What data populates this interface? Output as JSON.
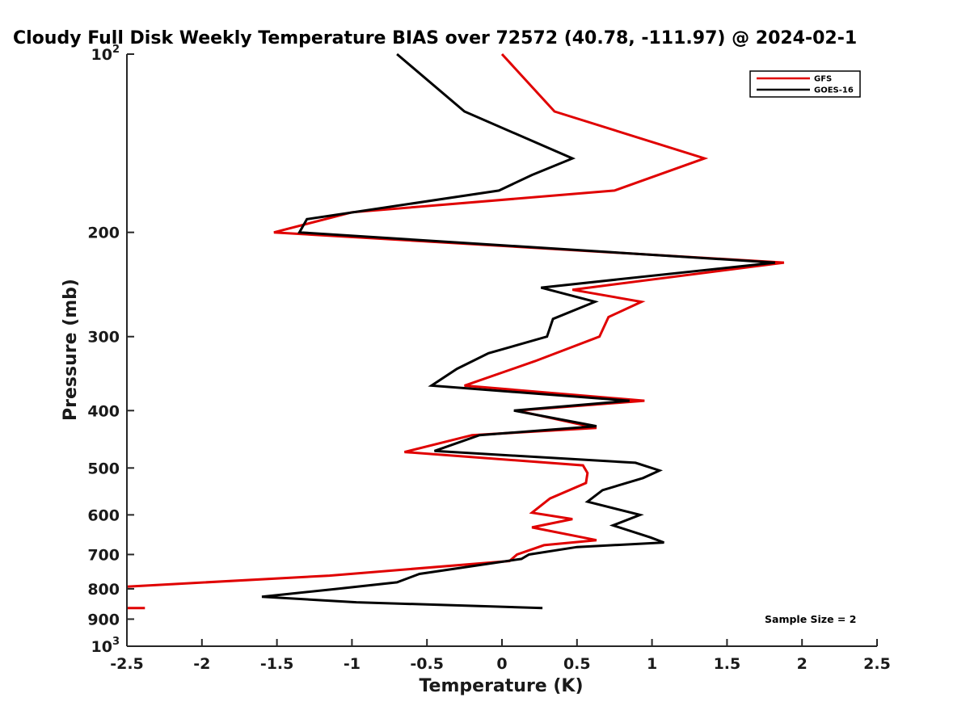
{
  "chart_data": {
    "type": "line",
    "title": "Cloudy Full Disk Weekly Temperature BIAS over 72572 (40.78, -111.97) @ 2024-02-1",
    "xlabel": "Temperature (K)",
    "ylabel": "Pressure (mb)",
    "xlim": [
      -2.5,
      2.5
    ],
    "ylim": [
      100,
      1000
    ],
    "y_scale": "log",
    "y_reversed": true,
    "grid": false,
    "legend_position": "top-right",
    "annotation": "Sample Size = 2",
    "x_ticks": [
      {
        "value": -2.5,
        "label": "-2.5"
      },
      {
        "value": -2,
        "label": "-2"
      },
      {
        "value": -1.5,
        "label": "-1.5"
      },
      {
        "value": -1,
        "label": "-1"
      },
      {
        "value": -0.5,
        "label": "-0.5"
      },
      {
        "value": 0,
        "label": "0"
      },
      {
        "value": 0.5,
        "label": "0.5"
      },
      {
        "value": 1,
        "label": "1"
      },
      {
        "value": 1.5,
        "label": "1.5"
      },
      {
        "value": 2,
        "label": "2"
      },
      {
        "value": 2.5,
        "label": "2.5"
      }
    ],
    "y_ticks": [
      {
        "value": 100,
        "label": "10",
        "sup": "2"
      },
      {
        "value": 200,
        "label": "200",
        "sup": ""
      },
      {
        "value": 300,
        "label": "300",
        "sup": ""
      },
      {
        "value": 400,
        "label": "400",
        "sup": ""
      },
      {
        "value": 500,
        "label": "500",
        "sup": ""
      },
      {
        "value": 600,
        "label": "600",
        "sup": ""
      },
      {
        "value": 700,
        "label": "700",
        "sup": ""
      },
      {
        "value": 800,
        "label": "800",
        "sup": ""
      },
      {
        "value": 900,
        "label": "900",
        "sup": ""
      },
      {
        "value": 1000,
        "label": "10",
        "sup": "3"
      }
    ],
    "series": [
      {
        "name": "GFS",
        "color": "#e00000",
        "points": [
          [
            0.0,
            100
          ],
          [
            0.35,
            125
          ],
          [
            1.35,
            150
          ],
          [
            0.75,
            170
          ],
          [
            -1.0,
            185
          ],
          [
            -1.52,
            200
          ],
          [
            1.88,
            225
          ],
          [
            0.47,
            250
          ],
          [
            0.93,
            262
          ],
          [
            0.71,
            278
          ],
          [
            0.65,
            300
          ],
          [
            0.22,
            330
          ],
          [
            -0.25,
            363
          ],
          [
            0.95,
            385
          ],
          [
            0.1,
            400
          ],
          [
            0.63,
            428
          ],
          [
            -0.2,
            440
          ],
          [
            -0.65,
            470
          ],
          [
            0.54,
            495
          ],
          [
            0.57,
            510
          ],
          [
            0.56,
            530
          ],
          [
            0.32,
            563
          ],
          [
            0.2,
            595
          ],
          [
            0.47,
            610
          ],
          [
            0.2,
            630
          ],
          [
            0.63,
            662
          ],
          [
            0.28,
            675
          ],
          [
            0.1,
            700
          ],
          [
            0.05,
            718
          ],
          [
            -1.15,
            760
          ],
          [
            -2.5,
            793
          ]
        ]
      },
      {
        "name": "",
        "color": "#e00000",
        "points": [
          [
            -2.5,
            862
          ],
          [
            -2.38,
            862
          ]
        ]
      },
      {
        "name": "GOES-16",
        "color": "#000000",
        "points": [
          [
            -0.7,
            100
          ],
          [
            -0.25,
            125
          ],
          [
            0.47,
            150
          ],
          [
            0.2,
            160
          ],
          [
            -0.02,
            170
          ],
          [
            -1.3,
            190
          ],
          [
            -1.35,
            200
          ],
          [
            1.82,
            225
          ],
          [
            0.26,
            248
          ],
          [
            0.62,
            262
          ],
          [
            0.34,
            280
          ],
          [
            0.3,
            300
          ],
          [
            -0.09,
            320
          ],
          [
            -0.3,
            340
          ],
          [
            -0.47,
            363
          ],
          [
            0.85,
            385
          ],
          [
            0.08,
            400
          ],
          [
            0.63,
            425
          ],
          [
            -0.15,
            440
          ],
          [
            -0.45,
            468
          ],
          [
            0.89,
            490
          ],
          [
            1.05,
            505
          ],
          [
            0.94,
            520
          ],
          [
            0.67,
            545
          ],
          [
            0.57,
            570
          ],
          [
            0.92,
            600
          ],
          [
            0.74,
            625
          ],
          [
            0.99,
            655
          ],
          [
            1.08,
            668
          ],
          [
            0.5,
            680
          ],
          [
            0.18,
            700
          ],
          [
            0.13,
            712
          ],
          [
            -0.55,
            755
          ],
          [
            -0.7,
            780
          ],
          [
            -1.1,
            800
          ],
          [
            -1.6,
            825
          ],
          [
            -0.97,
            843
          ],
          [
            0.27,
            862
          ]
        ]
      }
    ]
  }
}
